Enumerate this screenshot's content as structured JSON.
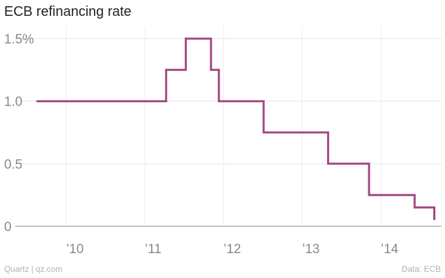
{
  "chart_data": {
    "type": "line",
    "step": true,
    "title": "ECB refinancing rate",
    "xlabel": "",
    "ylabel": "",
    "ylim": [
      0,
      1.5
    ],
    "xlim": [
      2009.62,
      2014.72
    ],
    "y_ticks": [
      {
        "value": 0,
        "label": "0"
      },
      {
        "value": 0.5,
        "label": "0.5"
      },
      {
        "value": 1.0,
        "label": "1.0"
      },
      {
        "value": 1.5,
        "label": "1.5%"
      }
    ],
    "x_ticks": [
      {
        "value": 2010,
        "label": "’10"
      },
      {
        "value": 2011,
        "label": "’11"
      },
      {
        "value": 2012,
        "label": "’12"
      },
      {
        "value": 2013,
        "label": "’13"
      },
      {
        "value": 2014,
        "label": "’14"
      }
    ],
    "grid": true,
    "line_color": "#a2487f",
    "series": [
      {
        "x": [
          2009.62,
          2011.27,
          2011.52,
          2011.84,
          2011.94,
          2012.51,
          2013.33,
          2013.85,
          2014.43,
          2014.68
        ],
        "values": [
          1.0,
          1.25,
          1.5,
          1.25,
          1.0,
          0.75,
          0.5,
          0.25,
          0.15,
          0.05
        ]
      }
    ]
  },
  "footer": {
    "source_left": "Quartz | qz.com",
    "source_right": "Data: ECB"
  }
}
